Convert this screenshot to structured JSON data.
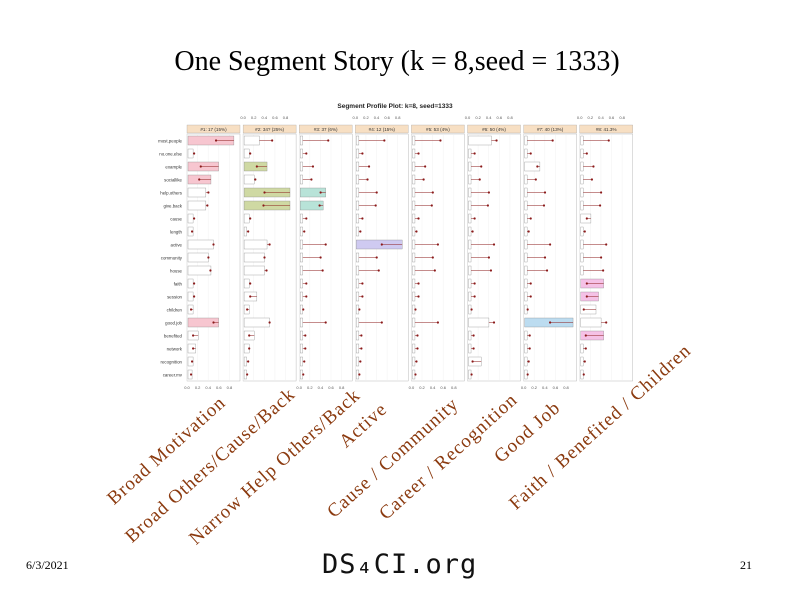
{
  "slide": {
    "title": "One Segment Story (k = 8,seed = 1333)",
    "date": "6/3/2021",
    "page_number": "21",
    "brand": "DS₄CI.org"
  },
  "segment_labels": [
    "Broad Motivation",
    "Broad Others/Cause/Back",
    "Narrow Help Others/Back",
    "Active",
    "Cause / Community",
    "Career / Recognition",
    "Good Job",
    "Faith / Benefited / Children"
  ],
  "chart_data": {
    "type": "bar",
    "title": "Segment Profile Plot: k=8, seed=1333",
    "panel_headers": [
      "#1: 17 (15%)",
      "#2: 34? (25%)",
      "#3: 37 (6%)",
      "#4: 12 (15%)",
      "#5: 53 (4%)",
      "#6: 50 (4%)",
      "#7: 40 (13%)",
      "#8: 41.3%"
    ],
    "axis_ticks": [
      "0.0",
      "0.2",
      "0.4",
      "0.6",
      "0.8"
    ],
    "xlim": [
      0,
      1
    ],
    "grid": true,
    "colors": {
      "seg1": "#f7c6d0",
      "seg2": "#cfd9a3",
      "seg3": "#b8e3d8",
      "seg4": "#cfcaf1",
      "seg5": "#e8e6b9",
      "seg6": "#b8e0c0",
      "seg7": "#bcdcf0",
      "seg8": "#f5c1e6",
      "total": "#ffffff",
      "marker": "#8b1a1a",
      "header_bg": "#f7dfc3"
    },
    "categories": [
      "most.people",
      "no.one.else",
      "example",
      "sociallike",
      "help.others",
      "give.back",
      "cause",
      "length",
      "active",
      "community",
      "house",
      "faith",
      "session",
      "children",
      "good.job",
      "benefited",
      "network",
      "recognition",
      "career.mv"
    ],
    "total": [
      0.55,
      0.12,
      0.25,
      0.22,
      0.4,
      0.38,
      0.12,
      0.08,
      0.5,
      0.4,
      0.44,
      0.12,
      0.12,
      0.06,
      0.5,
      0.1,
      0.1,
      0.08,
      0.06
    ],
    "series": [
      {
        "values": [
          0.9,
          0.1,
          0.6,
          0.45,
          0.35,
          0.35,
          0.1,
          0.1,
          0.5,
          0.4,
          0.45,
          0.1,
          0.1,
          0.1,
          0.6,
          0.2,
          0.15,
          0.1,
          0.08
        ]
      },
      {
        "values": [
          0.3,
          0.1,
          0.45,
          0.2,
          0.9,
          0.9,
          0.1,
          0.05,
          0.45,
          0.4,
          0.4,
          0.1,
          0.25,
          0.1,
          0.5,
          0.2,
          0.1,
          0.05,
          0.05
        ]
      },
      {
        "values": [
          0.05,
          0.05,
          0.05,
          0.05,
          0.5,
          0.45,
          0.05,
          0.05,
          0.05,
          0.05,
          0.05,
          0.05,
          0.05,
          0.05,
          0.05,
          0.05,
          0.05,
          0.05,
          0.05
        ]
      },
      {
        "values": [
          0.05,
          0.05,
          0.05,
          0.05,
          0.05,
          0.05,
          0.05,
          0.05,
          0.9,
          0.05,
          0.05,
          0.05,
          0.05,
          0.05,
          0.05,
          0.05,
          0.05,
          0.05,
          0.05
        ]
      },
      {
        "values": [
          0.05,
          0.05,
          0.05,
          0.05,
          0.05,
          0.05,
          0.05,
          0.05,
          0.05,
          0.05,
          0.05,
          0.05,
          0.05,
          0.05,
          0.05,
          0.05,
          0.05,
          0.05,
          0.05
        ]
      },
      {
        "values": [
          0.45,
          0.05,
          0.05,
          0.05,
          0.05,
          0.05,
          0.05,
          0.05,
          0.05,
          0.05,
          0.05,
          0.05,
          0.05,
          0.05,
          0.4,
          0.05,
          0.05,
          0.25,
          0.05
        ]
      },
      {
        "values": [
          0.05,
          0.05,
          0.3,
          0.05,
          0.05,
          0.05,
          0.05,
          0.05,
          0.05,
          0.05,
          0.05,
          0.05,
          0.05,
          0.05,
          0.95,
          0.05,
          0.05,
          0.05,
          0.05
        ]
      },
      {
        "values": [
          0.05,
          0.05,
          0.05,
          0.05,
          0.05,
          0.05,
          0.2,
          0.05,
          0.05,
          0.05,
          0.05,
          0.45,
          0.35,
          0.3,
          0.4,
          0.45,
          0.05,
          0.05,
          0.05
        ]
      }
    ]
  }
}
